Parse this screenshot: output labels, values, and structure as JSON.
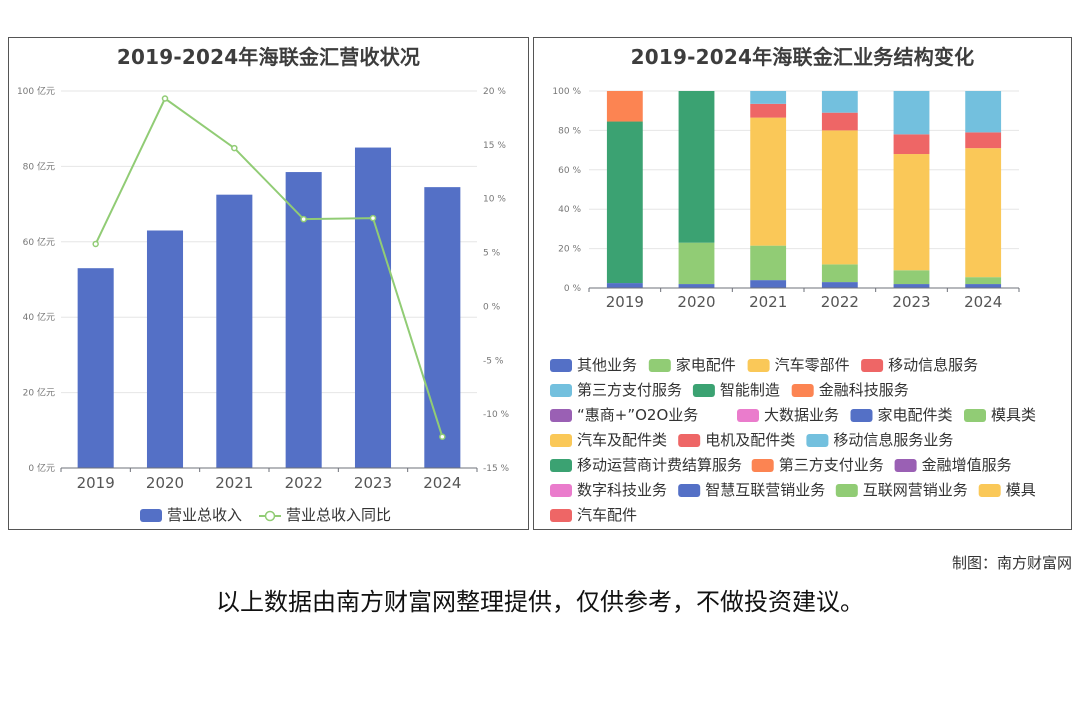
{
  "credit": "制图：南方财富网",
  "footer_note": "以上数据由南方财富网整理提供，仅供参考，不做投资建议。",
  "colors": {
    "revenue_bar": "#5470c6",
    "growth_line": "#91cc75"
  },
  "chart_data": [
    {
      "type": "bar",
      "title": "2019-2024年海联金汇营收状况",
      "categories": [
        "2019",
        "2020",
        "2021",
        "2022",
        "2023",
        "2024"
      ],
      "series": [
        {
          "name": "营业总收入",
          "kind": "bar",
          "axis": "left",
          "color": "#5470c6",
          "values": [
            53,
            63,
            72.5,
            78.5,
            85,
            74.5
          ]
        },
        {
          "name": "营业总收入同比",
          "kind": "line",
          "axis": "right",
          "color": "#91cc75",
          "values": [
            5.8,
            19.3,
            14.7,
            8.1,
            8.2,
            -12.1
          ]
        }
      ],
      "y_left": {
        "min": 0,
        "max": 100,
        "ticks": [
          "0 亿元",
          "20 亿元",
          "40 亿元",
          "60 亿元",
          "80 亿元",
          "100 亿元"
        ]
      },
      "y_right": {
        "min": -15,
        "max": 20,
        "ticks": [
          "-15 %",
          "-10 %",
          "-5 %",
          "0 %",
          "5 %",
          "10 %",
          "15 %",
          "20 %"
        ]
      },
      "grid": true,
      "legend": "bottom"
    },
    {
      "type": "bar",
      "stacked": true,
      "title": "2019-2024年海联金汇业务结构变化",
      "categories": [
        "2019",
        "2020",
        "2021",
        "2022",
        "2023",
        "2024"
      ],
      "y_ticks": [
        "0 %",
        "20 %",
        "40 %",
        "60 %",
        "80 %",
        "100 %"
      ],
      "ylim": [
        0,
        100
      ],
      "legend": "bottom",
      "legend_entries": [
        {
          "name": "其他业务",
          "color": "#5470c6"
        },
        {
          "name": "家电配件",
          "color": "#91cc75"
        },
        {
          "name": "汽车零部件",
          "color": "#fac858"
        },
        {
          "name": "移动信息服务",
          "color": "#ee6666"
        },
        {
          "name": "第三方支付服务",
          "color": "#73c0de"
        },
        {
          "name": "智能制造",
          "color": "#3ba272"
        },
        {
          "name": "金融科技服务",
          "color": "#fc8452"
        },
        {
          "name": "“惠商+”O2O业务",
          "color": "#9a60b4"
        },
        {
          "name": "大数据业务",
          "color": "#ea7ccc"
        },
        {
          "name": "家电配件类",
          "color": "#5470c6"
        },
        {
          "name": "模具类",
          "color": "#91cc75"
        },
        {
          "name": "汽车及配件类",
          "color": "#fac858"
        },
        {
          "name": "电机及配件类",
          "color": "#ee6666"
        },
        {
          "name": "移动信息服务业务",
          "color": "#73c0de"
        },
        {
          "name": "移动运营商计费结算服务",
          "color": "#3ba272"
        },
        {
          "name": "第三方支付业务",
          "color": "#fc8452"
        },
        {
          "name": "金融增值服务",
          "color": "#9a60b4"
        },
        {
          "name": "数字科技业务",
          "color": "#ea7ccc"
        },
        {
          "name": "智慧互联营销业务",
          "color": "#5470c6"
        },
        {
          "name": "互联网营销业务",
          "color": "#91cc75"
        },
        {
          "name": "模具",
          "color": "#fac858"
        },
        {
          "name": "汽车配件",
          "color": "#ee6666"
        }
      ],
      "stacks": [
        [
          {
            "name": "其他业务",
            "value": 2.5
          },
          {
            "name": "智能制造",
            "value": 82
          },
          {
            "name": "金融科技服务",
            "value": 15.5
          }
        ],
        [
          {
            "name": "其他业务",
            "value": 2
          },
          {
            "name": "家电配件",
            "value": 21
          },
          {
            "name": "智能制造",
            "value": 77
          }
        ],
        [
          {
            "name": "其他业务",
            "value": 4
          },
          {
            "name": "家电配件",
            "value": 17.5
          },
          {
            "name": "汽车零部件",
            "value": 65
          },
          {
            "name": "移动信息服务",
            "value": 7
          },
          {
            "name": "第三方支付服务",
            "value": 6.5
          }
        ],
        [
          {
            "name": "其他业务",
            "value": 3
          },
          {
            "name": "家电配件",
            "value": 9
          },
          {
            "name": "汽车零部件",
            "value": 68
          },
          {
            "name": "移动信息服务",
            "value": 9
          },
          {
            "name": "第三方支付服务",
            "value": 11
          }
        ],
        [
          {
            "name": "其他业务",
            "value": 2
          },
          {
            "name": "家电配件",
            "value": 7
          },
          {
            "name": "汽车零部件",
            "value": 59
          },
          {
            "name": "移动信息服务",
            "value": 10
          },
          {
            "name": "第三方支付服务",
            "value": 22
          }
        ],
        [
          {
            "name": "其他业务",
            "value": 2
          },
          {
            "name": "家电配件",
            "value": 3.5
          },
          {
            "name": "汽车零部件",
            "value": 65.5
          },
          {
            "name": "移动信息服务",
            "value": 8
          },
          {
            "name": "第三方支付服务",
            "value": 21
          }
        ]
      ]
    }
  ]
}
